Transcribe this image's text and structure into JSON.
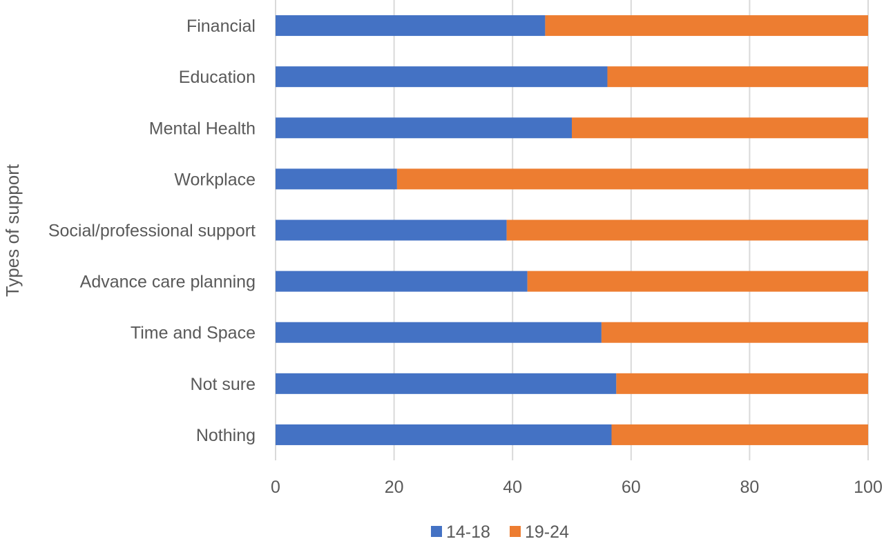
{
  "chart_data": {
    "type": "bar",
    "orientation": "horizontal",
    "stacked": "percent",
    "title": "",
    "xlabel": "",
    "ylabel": "Types of support",
    "xlim": [
      0,
      100
    ],
    "x_ticks": [
      0,
      20,
      40,
      60,
      80,
      100
    ],
    "grid": "vertical",
    "legend_position": "bottom",
    "categories": [
      "Financial",
      "Education",
      "Mental Health",
      "Workplace",
      "Social/professional support",
      "Advance care planning",
      "Time and Space",
      "Not sure",
      "Nothing"
    ],
    "series": [
      {
        "name": "14-18",
        "color": "#4472C4",
        "values": [
          45.5,
          56,
          50,
          20.5,
          39,
          42.5,
          55,
          57.5,
          56.7
        ]
      },
      {
        "name": "19-24",
        "color": "#ED7D31",
        "values": [
          54.5,
          44,
          50,
          79.5,
          61,
          57.5,
          45,
          42.5,
          43.3
        ]
      }
    ]
  }
}
